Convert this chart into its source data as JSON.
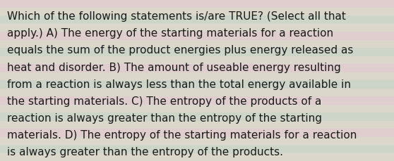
{
  "lines": [
    "Which of the following statements is/are TRUE? (Select all that",
    "apply.) A) The energy of the starting materials for a reaction",
    "equals the sum of the product energies plus energy released as",
    "heat and disorder. B) The amount of useable energy resulting",
    "from a reaction is always less than the total energy available in",
    "the starting materials. C) The entropy of the products of a",
    "reaction is always greater than the entropy of the starting",
    "materials. D) The entropy of the starting materials for a reaction",
    "is always greater than the entropy of the products."
  ],
  "stripe_colors": [
    "#dbd7cb",
    "#cdd4c8",
    "#dbd7cb",
    "#e0cece",
    "#dbd7cb",
    "#cdd4c8",
    "#dbd7cb",
    "#e0cece",
    "#dbd7cb",
    "#cdd4c8",
    "#dbd7cb",
    "#e0cece",
    "#dbd7cb",
    "#cdd4c8",
    "#dbd7cb",
    "#e0cece",
    "#dbd7cb",
    "#cdd4c8",
    "#dbd7cb",
    "#e0cece"
  ],
  "background_color": "#d9d5c9",
  "text_color": "#1a1a1a",
  "font_size": 11.0,
  "fig_width": 5.58,
  "fig_height": 2.3,
  "dpi": 100
}
